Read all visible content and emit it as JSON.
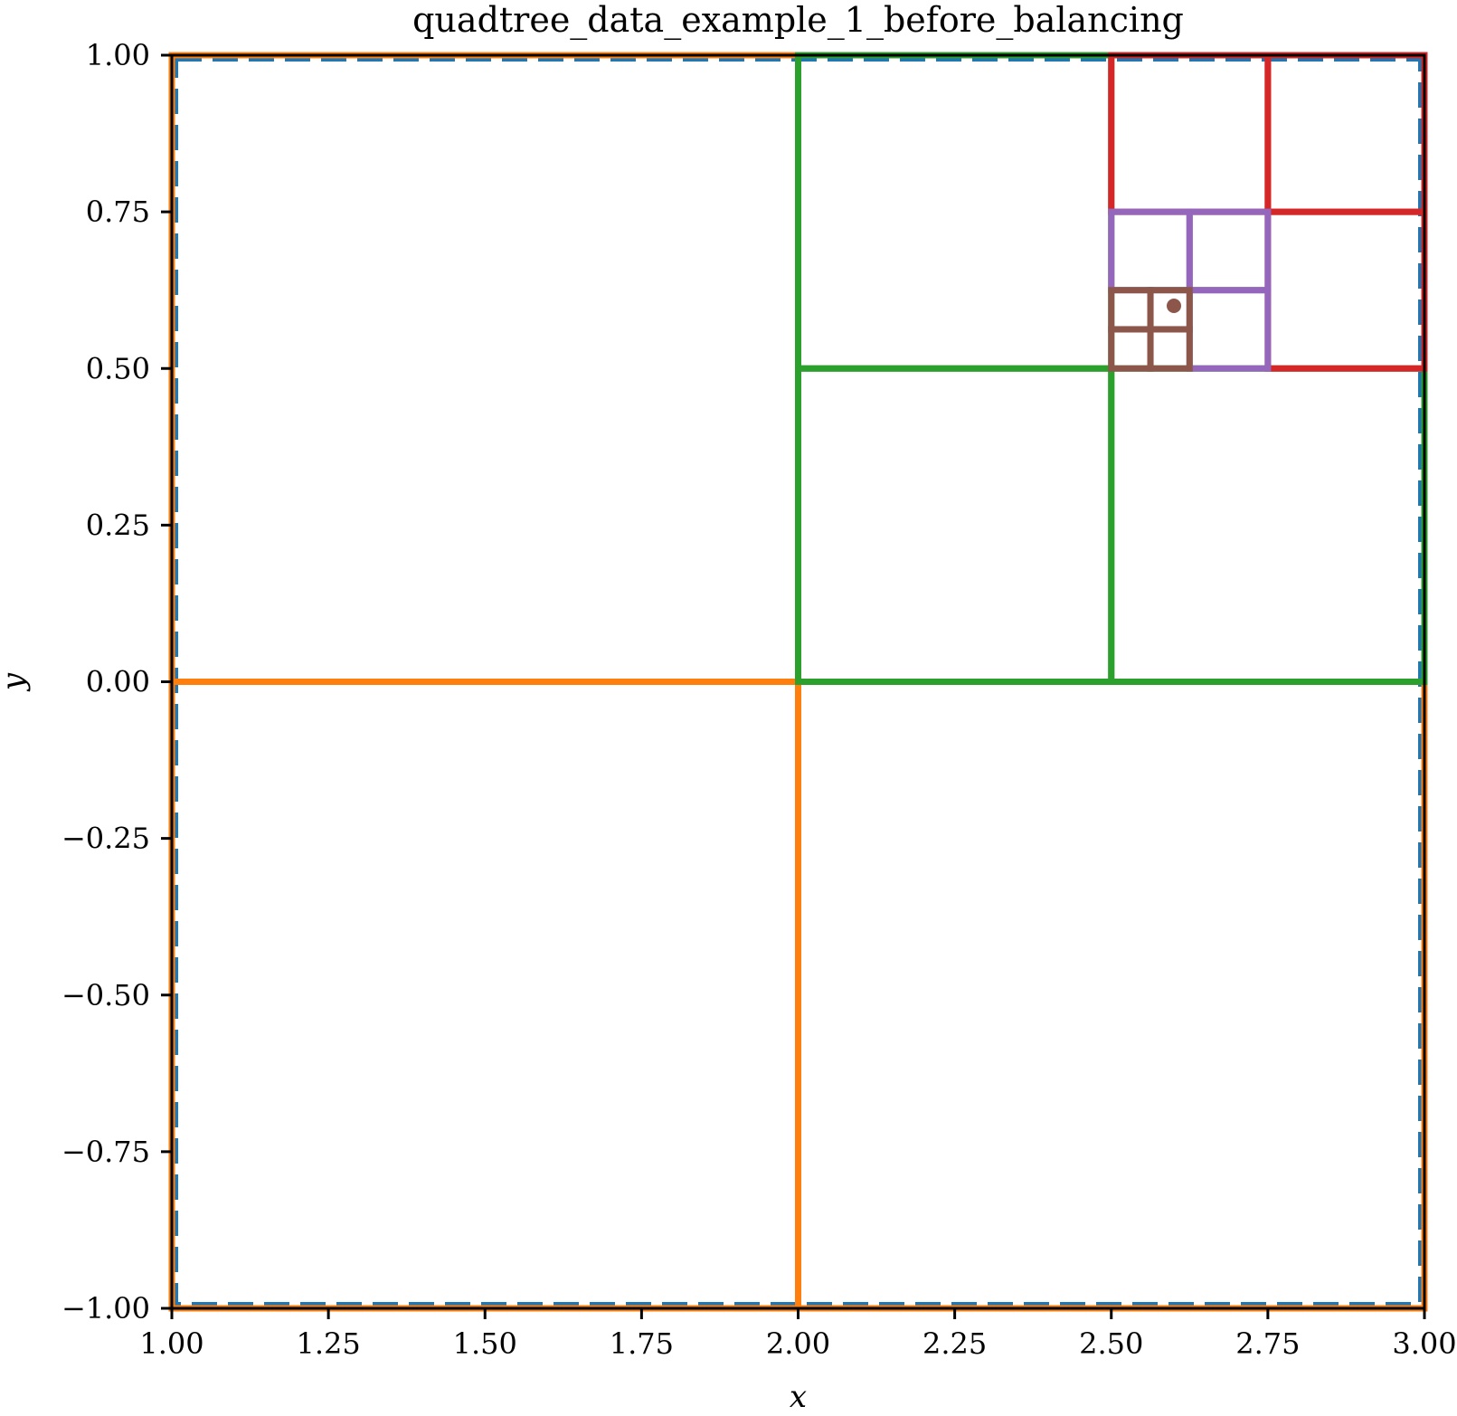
{
  "chart_data": {
    "type": "line",
    "title": "quadtree_data_example_1_before_balancing",
    "xlabel": "x",
    "ylabel": "y",
    "xlim": [
      1.0,
      3.0
    ],
    "ylim": [
      -1.0,
      1.0
    ],
    "xticks": [
      1.0,
      1.25,
      1.5,
      1.75,
      2.0,
      2.25,
      2.5,
      2.75,
      3.0
    ],
    "xtick_labels": [
      "1.00",
      "1.25",
      "1.50",
      "1.75",
      "2.00",
      "2.25",
      "2.50",
      "2.75",
      "3.00"
    ],
    "yticks": [
      1.0,
      0.75,
      0.5,
      0.25,
      0.0,
      -0.25,
      -0.5,
      -0.75,
      -1.0
    ],
    "ytick_labels": [
      "1.00",
      "0.75",
      "0.50",
      "0.25",
      "0.00",
      "−0.25",
      "−0.50",
      "−0.75",
      "−1.00"
    ],
    "grid": false,
    "series": [
      {
        "color": "#1f77b4",
        "dashed": true,
        "boxes": [
          [
            1.0,
            -1.0,
            3.0,
            1.0
          ]
        ]
      },
      {
        "color": "#ff7f0e",
        "dashed": false,
        "boxes": [
          [
            1.0,
            -1.0,
            2.0,
            0.0
          ],
          [
            2.0,
            -1.0,
            3.0,
            0.0
          ],
          [
            1.0,
            0.0,
            2.0,
            1.0
          ]
        ]
      },
      {
        "color": "#2ca02c",
        "dashed": false,
        "boxes": [
          [
            2.0,
            0.0,
            2.5,
            0.5
          ],
          [
            2.5,
            0.0,
            3.0,
            0.5
          ],
          [
            2.0,
            0.5,
            2.5,
            1.0
          ]
        ]
      },
      {
        "color": "#d62728",
        "dashed": false,
        "boxes": [
          [
            2.75,
            0.5,
            3.0,
            0.75
          ],
          [
            2.5,
            0.75,
            2.75,
            1.0
          ],
          [
            2.75,
            0.75,
            3.0,
            1.0
          ]
        ]
      },
      {
        "color": "#9467bd",
        "dashed": false,
        "boxes": [
          [
            2.625,
            0.5,
            2.75,
            0.625
          ],
          [
            2.5,
            0.625,
            2.625,
            0.75
          ],
          [
            2.625,
            0.625,
            2.75,
            0.75
          ]
        ]
      },
      {
        "color": "#8c564b",
        "dashed": false,
        "boxes": [
          [
            2.5,
            0.5,
            2.5625,
            0.5625
          ],
          [
            2.5625,
            0.5,
            2.625,
            0.5625
          ],
          [
            2.5,
            0.5625,
            2.5625,
            0.625
          ],
          [
            2.5625,
            0.5625,
            2.625,
            0.625
          ]
        ]
      }
    ],
    "points": [
      {
        "x": 2.6,
        "y": 0.6,
        "color": "#8c564b"
      }
    ]
  }
}
